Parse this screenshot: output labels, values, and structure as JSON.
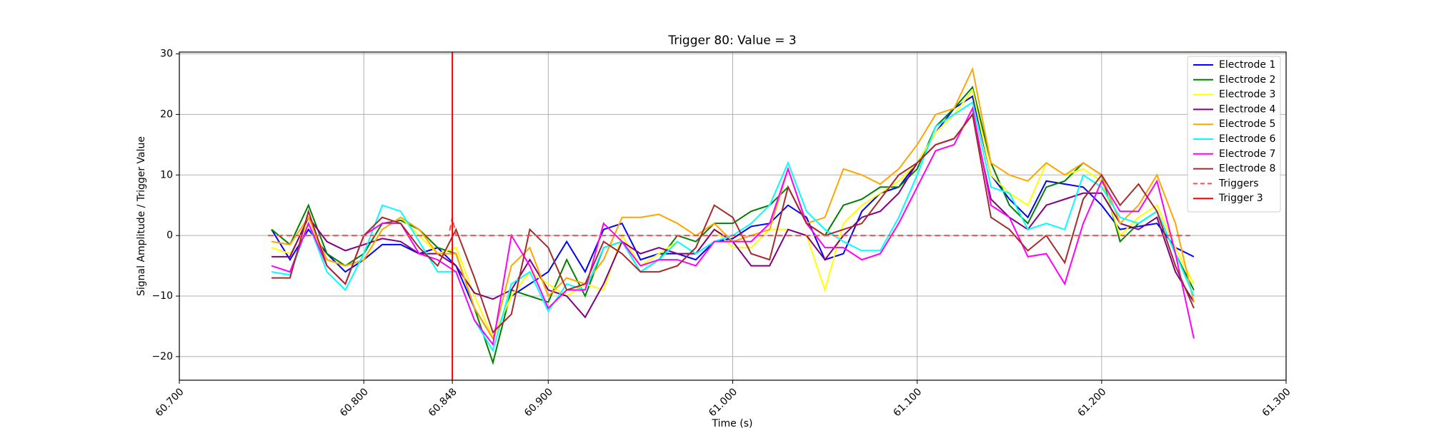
{
  "chart_data": {
    "type": "line",
    "title": "Trigger 80: Value = 3",
    "xlabel": "Time (s)",
    "ylabel": "Signal Amplitude / Trigger Value",
    "xlim": [
      60.7,
      61.3
    ],
    "ylim": [
      -23.9,
      30.3
    ],
    "xticks": [
      {
        "value": 60.7,
        "label": "60.700"
      },
      {
        "value": 60.8,
        "label": "60.800"
      },
      {
        "value": 60.848,
        "label": "60.848"
      },
      {
        "value": 60.9,
        "label": "60.900"
      },
      {
        "value": 61.0,
        "label": "61.000"
      },
      {
        "value": 61.1,
        "label": "61.100"
      },
      {
        "value": 61.2,
        "label": "61.200"
      },
      {
        "value": 61.3,
        "label": "61.300"
      }
    ],
    "yticks": [
      {
        "value": -20,
        "label": "−20"
      },
      {
        "value": -10,
        "label": "−10"
      },
      0,
      10,
      20,
      30
    ],
    "grid": true,
    "legend": "upper right",
    "x": [
      60.75,
      60.76,
      60.77,
      60.78,
      60.79,
      60.8,
      60.81,
      60.82,
      60.83,
      60.84,
      60.85,
      60.86,
      60.87,
      60.88,
      60.89,
      60.9,
      60.91,
      60.92,
      60.93,
      60.94,
      60.95,
      60.96,
      60.97,
      60.98,
      60.99,
      61.0,
      61.01,
      61.02,
      61.03,
      61.04,
      61.05,
      61.06,
      61.07,
      61.08,
      61.09,
      61.1,
      61.11,
      61.12,
      61.13,
      61.14,
      61.15,
      61.16,
      61.17,
      61.18,
      61.19,
      61.2,
      61.21,
      61.22,
      61.23,
      61.24,
      61.25
    ],
    "series": [
      {
        "name": "Electrode 1",
        "color": "#0000ff",
        "values": [
          1,
          -4,
          1,
          -3,
          -6,
          -4,
          -1.5,
          -1.5,
          -3,
          -2,
          -5,
          -12,
          -17,
          -10,
          -8,
          -6,
          -1,
          -6,
          1,
          2,
          -4,
          -3,
          -3,
          -4,
          -1,
          -0.5,
          1.5,
          2,
          5,
          3,
          -4,
          -3,
          4,
          7,
          8,
          12,
          17,
          21,
          23,
          10,
          6,
          3,
          9,
          8.5,
          8,
          5,
          1,
          1.5,
          2,
          -2,
          -3.5
        ]
      },
      {
        "name": "Electrode 2",
        "color": "#008000",
        "values": [
          1,
          -1.5,
          5,
          -3,
          -5,
          -3,
          2,
          2.5,
          1,
          -2,
          -3,
          -12,
          -21,
          -9,
          -10,
          -11,
          -4,
          -10,
          -2,
          -1,
          -6,
          -4,
          0,
          -1,
          2,
          2,
          4,
          5,
          8,
          2,
          0,
          5,
          6,
          8,
          8,
          11,
          18,
          21,
          24.5,
          12,
          5,
          2,
          8,
          9,
          12,
          10,
          -1,
          2,
          4,
          -3,
          -9
        ]
      },
      {
        "name": "Electrode 3",
        "color": "#ffff00",
        "values": [
          -2,
          -3,
          2,
          -4,
          -5,
          -4,
          1,
          3,
          0,
          -3,
          -2,
          -10,
          -17,
          -10,
          -6,
          -8,
          -10,
          -8,
          -9,
          0,
          -5,
          -3,
          -1,
          -3,
          1,
          -2,
          -2,
          1,
          1,
          0,
          -9,
          2,
          5,
          7,
          9,
          12,
          17,
          20,
          24,
          10,
          7,
          5,
          12,
          10,
          11,
          9,
          0,
          3,
          5,
          -2,
          -8
        ]
      },
      {
        "name": "Electrode 4",
        "color": "#800080",
        "values": [
          -3.5,
          -3.5,
          3,
          -1,
          -2.5,
          -1.5,
          -0.5,
          -1,
          -3,
          -3,
          -5,
          -9.5,
          -10.5,
          -9,
          -4,
          -9,
          -10,
          -13.5,
          -8,
          -1,
          -3,
          -2,
          -3,
          -3,
          1,
          -1,
          -5,
          -5,
          1,
          0,
          -4,
          0,
          3,
          4,
          7,
          12,
          15,
          16,
          20,
          6,
          3,
          1,
          5,
          6,
          7,
          7,
          2,
          1,
          3,
          -6,
          -11
        ]
      },
      {
        "name": "Electrode 5",
        "color": "#ffa500",
        "values": [
          -1,
          -1.5,
          3,
          -4,
          -5,
          -4,
          1,
          3,
          1,
          -3,
          -3,
          -12,
          -17,
          -5,
          -2,
          -10,
          -7,
          -8,
          -4,
          3,
          3,
          3.5,
          2,
          0,
          2,
          -1,
          0,
          1,
          11,
          2,
          3,
          11,
          10,
          8.5,
          11,
          15,
          20,
          21,
          27.5,
          12,
          10,
          9,
          12,
          10,
          12,
          10,
          2,
          5,
          10,
          2,
          -11
        ]
      },
      {
        "name": "Electrode 6",
        "color": "#00ffff",
        "values": [
          -6,
          -6.5,
          2,
          -6,
          -9,
          -3,
          5,
          4,
          -1,
          -6,
          -6,
          -14,
          -19,
          -8,
          -6,
          -12.5,
          -8,
          -9,
          -2,
          -1,
          -6,
          -4,
          -1,
          -3,
          -1,
          0,
          2,
          5,
          12,
          4,
          1,
          -1,
          -2.5,
          -2.5,
          3,
          10,
          18,
          20,
          22,
          8,
          7,
          1,
          2,
          1,
          10,
          8,
          3,
          2,
          4,
          -3,
          -10
        ]
      },
      {
        "name": "Electrode 7",
        "color": "#ff00ff",
        "values": [
          -5,
          -6,
          2,
          -5,
          -8,
          0,
          2,
          2,
          -3,
          -4,
          -6,
          -14,
          -18,
          0,
          -5,
          -12,
          -9,
          -9,
          2,
          -1,
          -5,
          -4,
          -4,
          -5,
          -1,
          -1,
          -1,
          2,
          11,
          2,
          -2,
          -2,
          -4,
          -3,
          2,
          8,
          14,
          15,
          21,
          5,
          3,
          -3.5,
          -3,
          -8,
          2,
          9,
          4,
          4,
          9,
          -3,
          -17
        ]
      },
      {
        "name": "Electrode 8",
        "color": "#a52a2a",
        "values": [
          -7,
          -7,
          4,
          -5,
          -8,
          0,
          3,
          2,
          -2,
          -5,
          1,
          -7,
          -16,
          -13,
          1,
          -2,
          -9,
          -8,
          -1,
          -3,
          -6,
          -6,
          -5,
          -2,
          5,
          3,
          -3,
          -4,
          8,
          2,
          0,
          1,
          2,
          6,
          10,
          12,
          15,
          16,
          20,
          3,
          1,
          -2.5,
          0,
          -4.5,
          6,
          10,
          5,
          8.5,
          4,
          -5,
          -12
        ]
      },
      {
        "name": "Triggers",
        "color": "#ff4d4d",
        "linestyle": "dashed",
        "x": [
          60.748,
          60.846,
          60.848,
          60.85,
          61.248
        ],
        "values": [
          0,
          0,
          3,
          0,
          0
        ]
      }
    ],
    "vlines": [
      {
        "name": "Trigger 3",
        "color": "#ff0000",
        "x": 60.848
      }
    ]
  }
}
